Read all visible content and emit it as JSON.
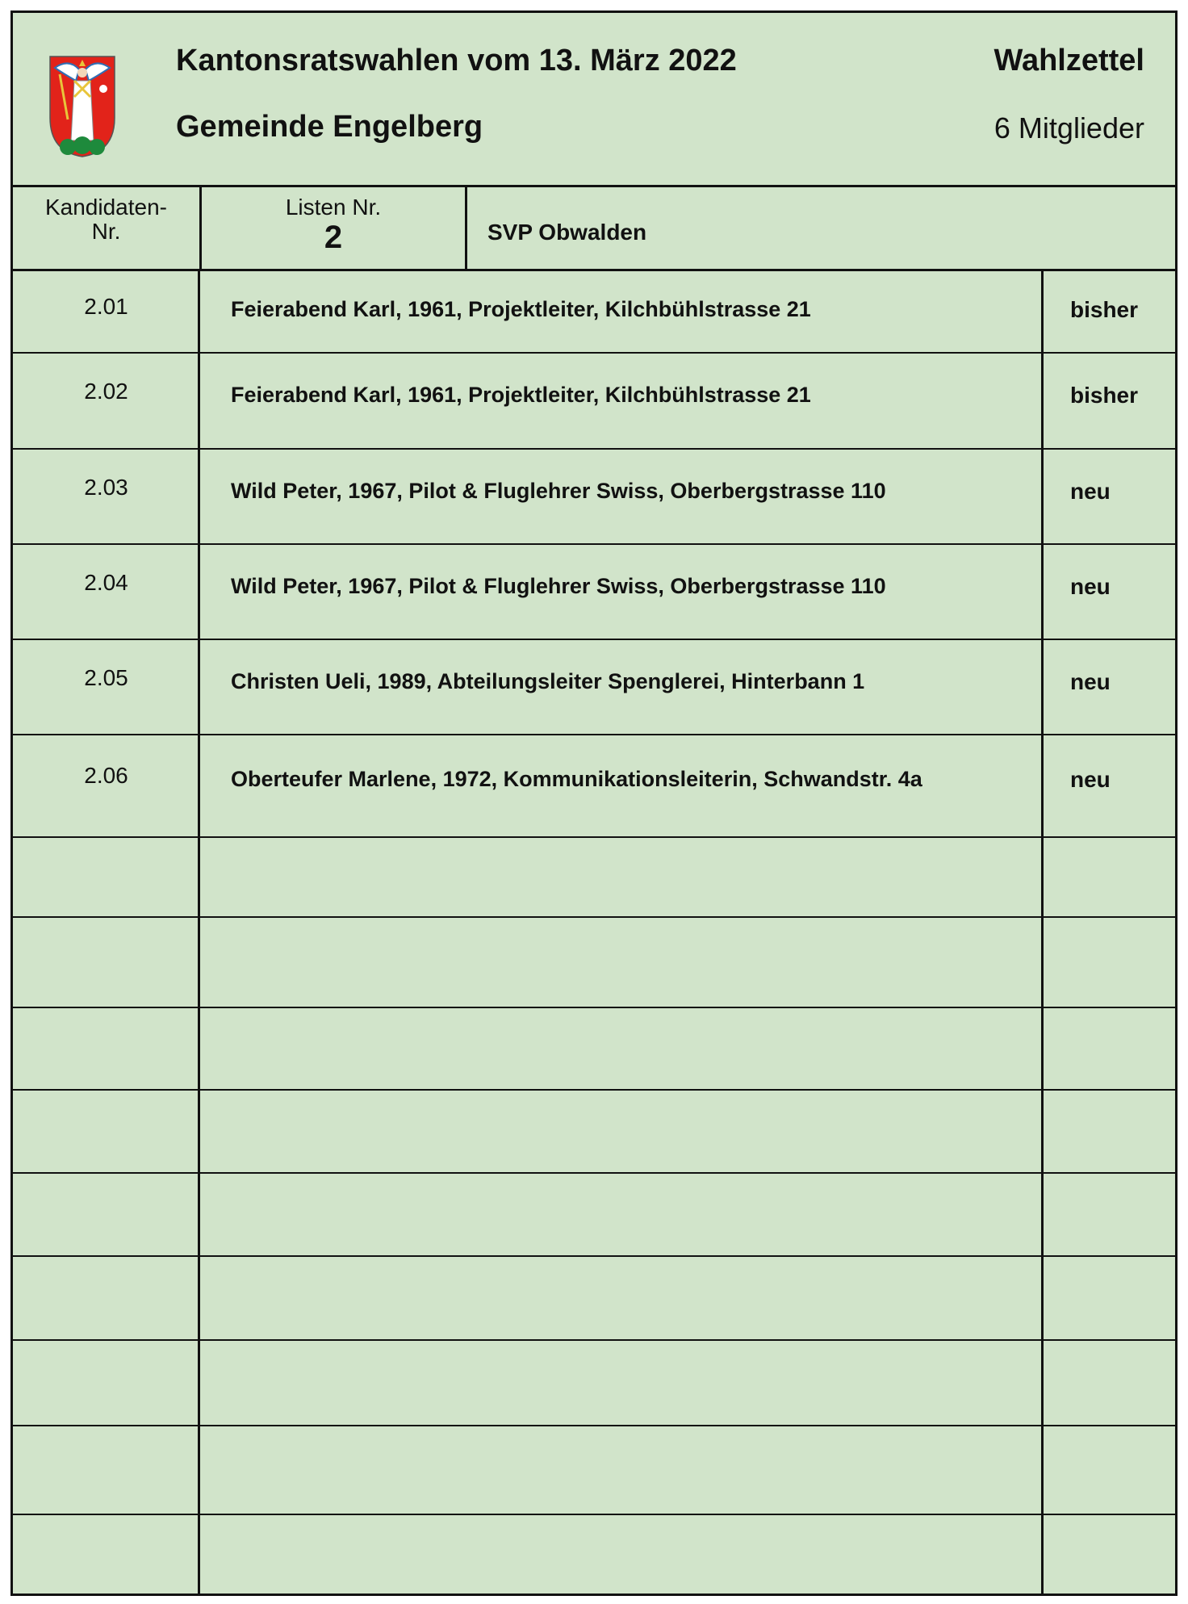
{
  "header": {
    "title": "Kantonsratswahlen vom 13. März 2022",
    "municipality": "Gemeinde Engelberg",
    "doc_type": "Wahlzettel",
    "seats": "6 Mitglieder",
    "coat_of_arms": "Engelberg coat of arms (angel on red shield)"
  },
  "columns": {
    "candidate_no_line1": "Kandidaten-",
    "candidate_no_line2": "Nr.",
    "list_no_label": "Listen Nr.",
    "list_no": "2",
    "party": "SVP Obwalden"
  },
  "rows": [
    {
      "no": "2.01",
      "candidate": "Feierabend Karl, 1961, Projektleiter, Kilchbühlstrasse 21",
      "status": "bisher"
    },
    {
      "no": "2.02",
      "candidate": "Feierabend Karl, 1961, Projektleiter, Kilchbühlstrasse 21",
      "status": "bisher"
    },
    {
      "no": "2.03",
      "candidate": "Wild Peter, 1967, Pilot & Fluglehrer Swiss, Oberbergstrasse 110",
      "status": "neu"
    },
    {
      "no": "2.04",
      "candidate": "Wild Peter, 1967, Pilot & Fluglehrer Swiss, Oberbergstrasse 110",
      "status": "neu"
    },
    {
      "no": "2.05",
      "candidate": "Christen Ueli, 1989, Abteilungsleiter Spenglerei, Hinterbann 1",
      "status": "neu"
    },
    {
      "no": "2.06",
      "candidate": "Oberteufer Marlene, 1972, Kommunikationsleiterin, Schwandstr. 4a",
      "status": "neu"
    }
  ],
  "colors": {
    "paper": "#d1e4ca",
    "shield": "#e2231a",
    "hills": "#1e8a3c"
  }
}
